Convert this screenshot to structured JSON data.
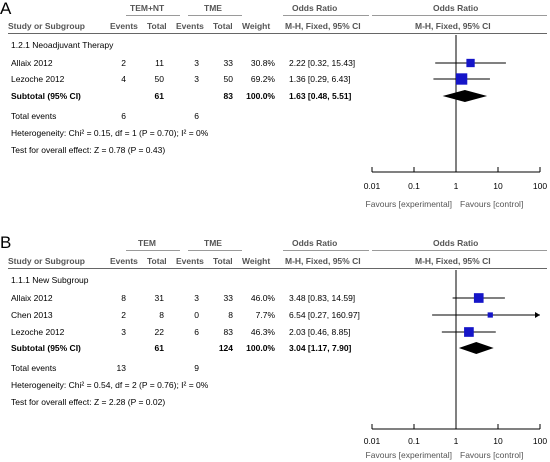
{
  "chart_data": [
    {
      "type": "forest",
      "panel_label": "A",
      "group_headers": [
        "TEM+NT",
        "TME"
      ],
      "columns": [
        "Study or Subgroup",
        "Events",
        "Total",
        "Events",
        "Total",
        "Weight",
        "Odds Ratio",
        "Odds Ratio"
      ],
      "method_label": "M-H, Fixed, 95% CI",
      "subgroup": "1.2.1 Neoadjuvant Therapy",
      "studies": [
        {
          "name": "Allaix 2012",
          "e1": "2",
          "t1": "11",
          "e2": "3",
          "t2": "33",
          "weight": "30.8%",
          "ci_text": "2.22 [0.32, 15.43]",
          "or": 2.22,
          "lo": 0.32,
          "hi": 15.43,
          "w": 30.8
        },
        {
          "name": "Lezoche 2012",
          "e1": "4",
          "t1": "50",
          "e2": "3",
          "t2": "50",
          "weight": "69.2%",
          "ci_text": "1.36 [0.29, 6.43]",
          "or": 1.36,
          "lo": 0.29,
          "hi": 6.43,
          "w": 69.2
        }
      ],
      "subtotal": {
        "label": "Subtotal (95% CI)",
        "t1": "61",
        "t2": "83",
        "weight": "100.0%",
        "ci_text": "1.63 [0.48, 5.51]",
        "or": 1.63,
        "lo": 0.48,
        "hi": 5.51
      },
      "total_events": {
        "label": "Total events",
        "e1": "6",
        "e2": "6"
      },
      "heterogeneity": "Heterogeneity: Chi² = 0.15, df = 1 (P = 0.70); I² = 0%",
      "overall_effect": "Test for overall effect: Z = 0.78 (P = 0.43)",
      "x_scale": "log",
      "x_ticks": [
        "0.01",
        "0.1",
        "1",
        "10",
        "100"
      ],
      "x_tick_values": [
        0.01,
        0.1,
        1,
        10,
        100
      ],
      "favours_left": "Favours [experimental]",
      "favours_right": "Favours [control]"
    },
    {
      "type": "forest",
      "panel_label": "B",
      "group_headers": [
        "TEM",
        "TME"
      ],
      "columns": [
        "Study or Subgroup",
        "Events",
        "Total",
        "Events",
        "Total",
        "Weight",
        "Odds Ratio",
        "Odds Ratio"
      ],
      "method_label": "M-H, Fixed, 95% CI",
      "subgroup": "1.1.1 New Subgroup",
      "studies": [
        {
          "name": "Allaix 2012",
          "e1": "8",
          "t1": "31",
          "e2": "3",
          "t2": "33",
          "weight": "46.0%",
          "ci_text": "3.48 [0.83, 14.59]",
          "or": 3.48,
          "lo": 0.83,
          "hi": 14.59,
          "w": 46.0
        },
        {
          "name": "Chen 2013",
          "e1": "2",
          "t1": "8",
          "e2": "0",
          "t2": "8",
          "weight": "7.7%",
          "ci_text": "6.54 [0.27, 160.97]",
          "or": 6.54,
          "lo": 0.27,
          "hi": 160.97,
          "w": 7.7
        },
        {
          "name": "Lezoche 2012",
          "e1": "3",
          "t1": "22",
          "e2": "6",
          "t2": "83",
          "weight": "46.3%",
          "ci_text": "2.03 [0.46, 8.85]",
          "or": 2.03,
          "lo": 0.46,
          "hi": 8.85,
          "w": 46.3
        }
      ],
      "subtotal": {
        "label": "Subtotal (95% CI)",
        "t1": "61",
        "t2": "124",
        "weight": "100.0%",
        "ci_text": "3.04 [1.17, 7.90]",
        "or": 3.04,
        "lo": 1.17,
        "hi": 7.9
      },
      "total_events": {
        "label": "Total events",
        "e1": "13",
        "e2": "9"
      },
      "heterogeneity": "Heterogeneity: Chi² = 0.54, df = 2 (P = 0.76); I² = 0%",
      "overall_effect": "Test for overall effect: Z = 2.28 (P = 0.02)",
      "x_scale": "log",
      "x_ticks": [
        "0.01",
        "0.1",
        "1",
        "10",
        "100"
      ],
      "x_tick_values": [
        0.01,
        0.1,
        1,
        10,
        100
      ],
      "favours_left": "Favours [experimental]",
      "favours_right": "Favours [control]"
    }
  ],
  "colors": {
    "square": "#1515c8",
    "diamond": "#000000",
    "lines": "#000000",
    "rules": "#9a9a9a"
  }
}
